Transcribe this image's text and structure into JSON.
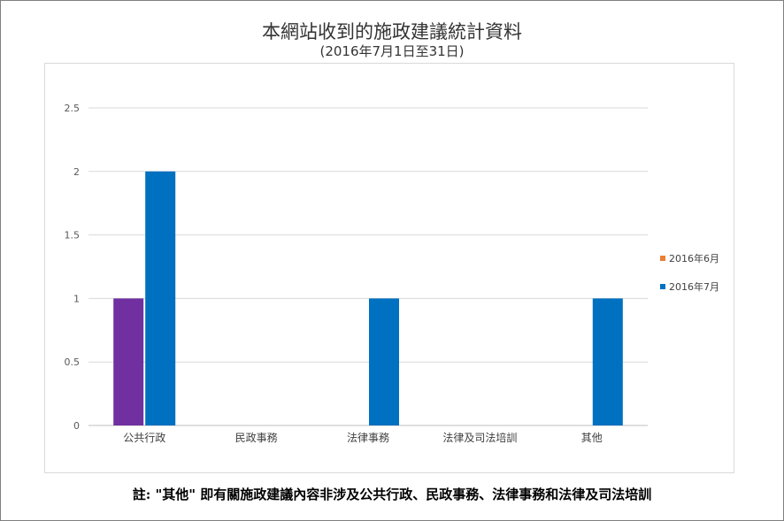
{
  "chart_data": {
    "type": "bar",
    "title": "本網站收到的施政建議統計資料",
    "subtitle": "(2016年7月1日至31日)",
    "categories": [
      "公共行政",
      "民政事務",
      "法律事務",
      "法律及司法培訓",
      "其他"
    ],
    "series": [
      {
        "name": "2016年6月",
        "values": [
          1,
          0,
          0,
          0,
          0
        ],
        "color": "#7030a0",
        "legend_color": "#ed7d31"
      },
      {
        "name": "2016年7月",
        "values": [
          2,
          0,
          1,
          0,
          1
        ],
        "color": "#0070c0",
        "legend_color": "#0070c0"
      }
    ],
    "ylim": [
      0,
      2.5
    ],
    "yticks": [
      "0",
      "0.5",
      "1",
      "1.5",
      "2",
      "2.5"
    ],
    "ytick_values": [
      0,
      0.5,
      1,
      1.5,
      2,
      2.5
    ],
    "grid": true,
    "legend_position": "right"
  },
  "footnote": "註: \"其他\" 即有關施政建議內容非涉及公共行政、民政事務、法律事務和法律及司法培訓"
}
